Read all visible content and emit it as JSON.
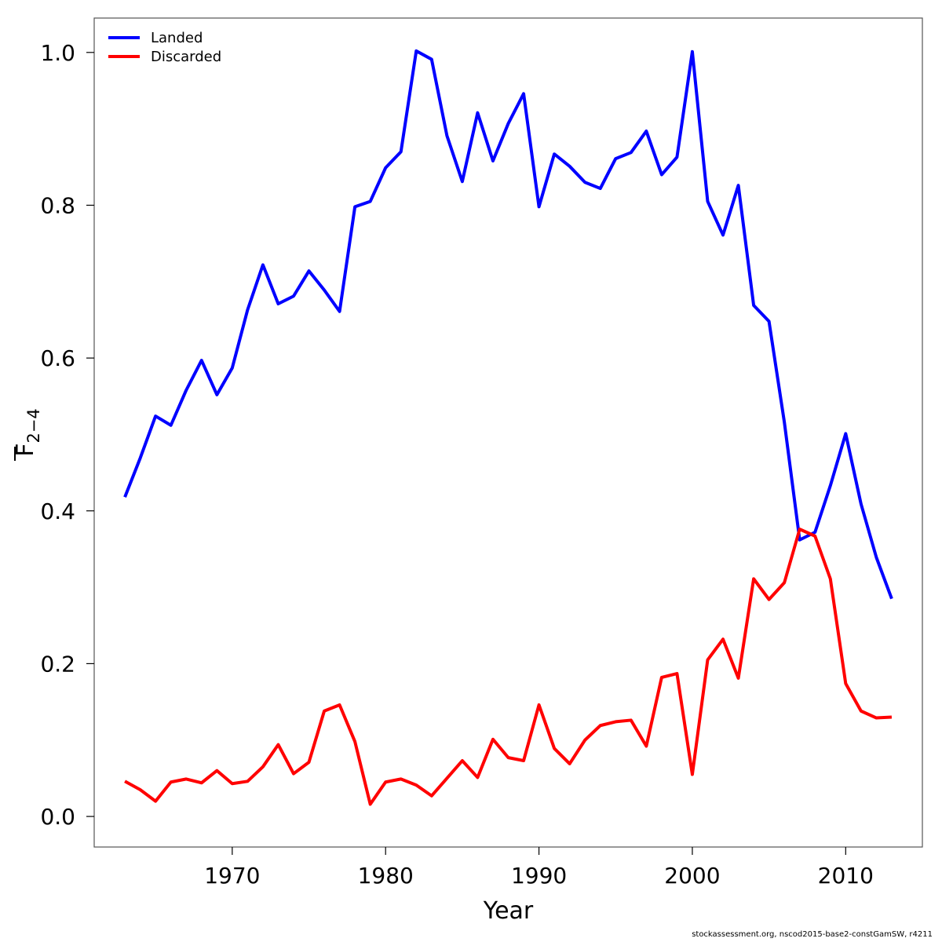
{
  "chart_data": {
    "type": "line",
    "title": "",
    "xlabel": "Year",
    "ylabel_main": "F",
    "ylabel_sub": "2−4",
    "xlim": [
      1961,
      2015
    ],
    "ylim": [
      -0.04,
      1.045
    ],
    "xticks": [
      1970,
      1980,
      1990,
      2000,
      2010
    ],
    "yticks": [
      0.0,
      0.2,
      0.4,
      0.6,
      0.8,
      1.0
    ],
    "ytick_labels": [
      "0.0",
      "0.2",
      "0.4",
      "0.6",
      "0.8",
      "1.0"
    ],
    "legend_position": "top-left",
    "grid": false,
    "x": [
      1963,
      1964,
      1965,
      1966,
      1967,
      1968,
      1969,
      1970,
      1971,
      1972,
      1973,
      1974,
      1975,
      1976,
      1977,
      1978,
      1979,
      1980,
      1981,
      1982,
      1983,
      1984,
      1985,
      1986,
      1987,
      1988,
      1989,
      1990,
      1991,
      1992,
      1993,
      1994,
      1995,
      1996,
      1997,
      1998,
      1999,
      2000,
      2001,
      2002,
      2003,
      2004,
      2005,
      2006,
      2007,
      2008,
      2009,
      2010,
      2011,
      2012,
      2013
    ],
    "series": [
      {
        "name": "Landed",
        "color": "#0000ff",
        "values": [
          0.418,
          0.469,
          0.524,
          0.512,
          0.558,
          0.597,
          0.552,
          0.587,
          0.663,
          0.722,
          0.671,
          0.681,
          0.714,
          0.689,
          0.661,
          0.798,
          0.805,
          0.849,
          0.87,
          1.002,
          0.991,
          0.891,
          0.831,
          0.921,
          0.858,
          0.907,
          0.946,
          0.798,
          0.867,
          0.851,
          0.83,
          0.822,
          0.861,
          0.869,
          0.897,
          0.84,
          0.863,
          1.001,
          0.805,
          0.761,
          0.826,
          0.669,
          0.648,
          0.516,
          0.362,
          0.372,
          0.433,
          0.501,
          0.409,
          0.339,
          0.285
        ]
      },
      {
        "name": "Discarded",
        "color": "#ff0000",
        "values": [
          0.046,
          0.035,
          0.02,
          0.045,
          0.049,
          0.044,
          0.06,
          0.043,
          0.046,
          0.065,
          0.094,
          0.056,
          0.071,
          0.138,
          0.146,
          0.098,
          0.016,
          0.045,
          0.049,
          0.041,
          0.027,
          0.05,
          0.073,
          0.051,
          0.101,
          0.077,
          0.073,
          0.146,
          0.089,
          0.069,
          0.1,
          0.119,
          0.124,
          0.126,
          0.092,
          0.182,
          0.187,
          0.055,
          0.205,
          0.232,
          0.181,
          0.311,
          0.284,
          0.306,
          0.376,
          0.367,
          0.311,
          0.174,
          0.138,
          0.129,
          0.13
        ]
      }
    ]
  },
  "footer_text": "stockassessment.org, nscod2015-base2-constGamSW, r4211"
}
